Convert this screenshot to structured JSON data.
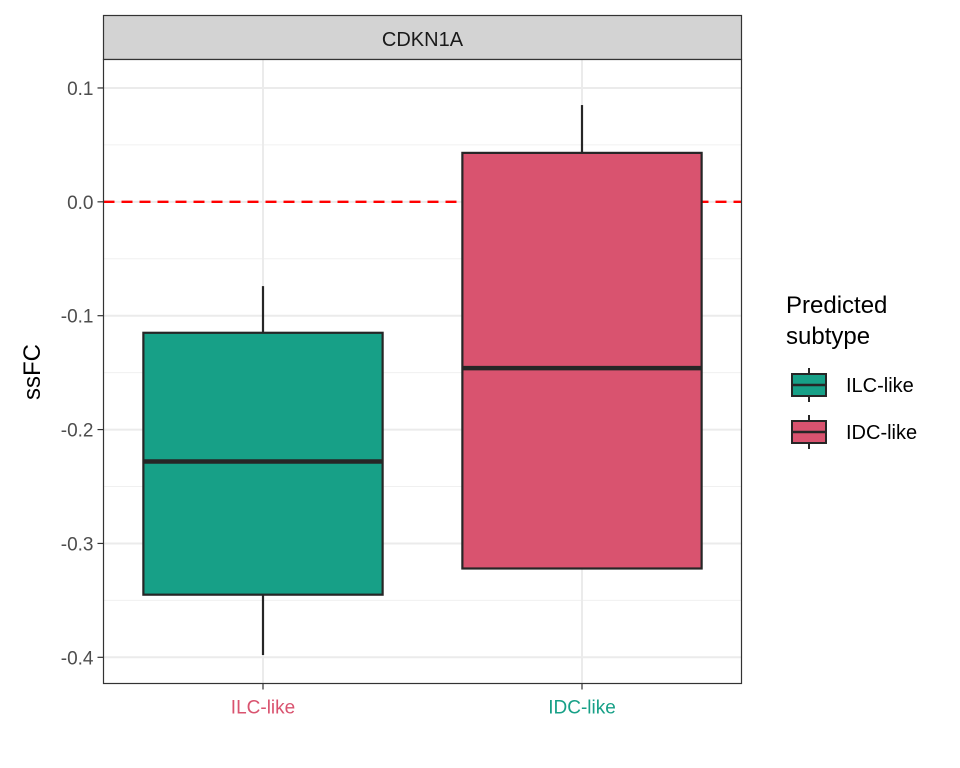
{
  "chart_data": {
    "type": "boxplot",
    "facet_label": "CDKN1A",
    "ylabel": "ssFC",
    "xlabel": "",
    "ylim": [
      -0.423,
      0.125
    ],
    "y_ticks": [
      0.1,
      0.0,
      -0.1,
      -0.2,
      -0.3,
      -0.4
    ],
    "y_tick_labels": [
      "0.1",
      "0.0",
      "-0.1",
      "-0.2",
      "-0.3",
      "-0.4"
    ],
    "categories": [
      "ILC-like",
      "IDC-like"
    ],
    "category_label_colors": [
      "#d9536f",
      "#17a087"
    ],
    "reference_line": {
      "y": 0.0,
      "color": "#ff0000",
      "style": "dashed"
    },
    "grid": true,
    "legend": {
      "title_lines": [
        "Predicted",
        "subtype"
      ],
      "position": "right",
      "entries": [
        {
          "label": "ILC-like",
          "color": "#17a087"
        },
        {
          "label": "IDC-like",
          "color": "#d9536f"
        }
      ]
    },
    "boxes": [
      {
        "category": "ILC-like",
        "color": "#17a087",
        "whisker_low": -0.398,
        "q1": -0.345,
        "median": -0.228,
        "q3": -0.115,
        "whisker_high": -0.074
      },
      {
        "category": "IDC-like",
        "color": "#d9536f",
        "whisker_low": -0.322,
        "q1": -0.322,
        "median": -0.146,
        "q3": 0.043,
        "whisker_high": 0.085
      }
    ]
  }
}
